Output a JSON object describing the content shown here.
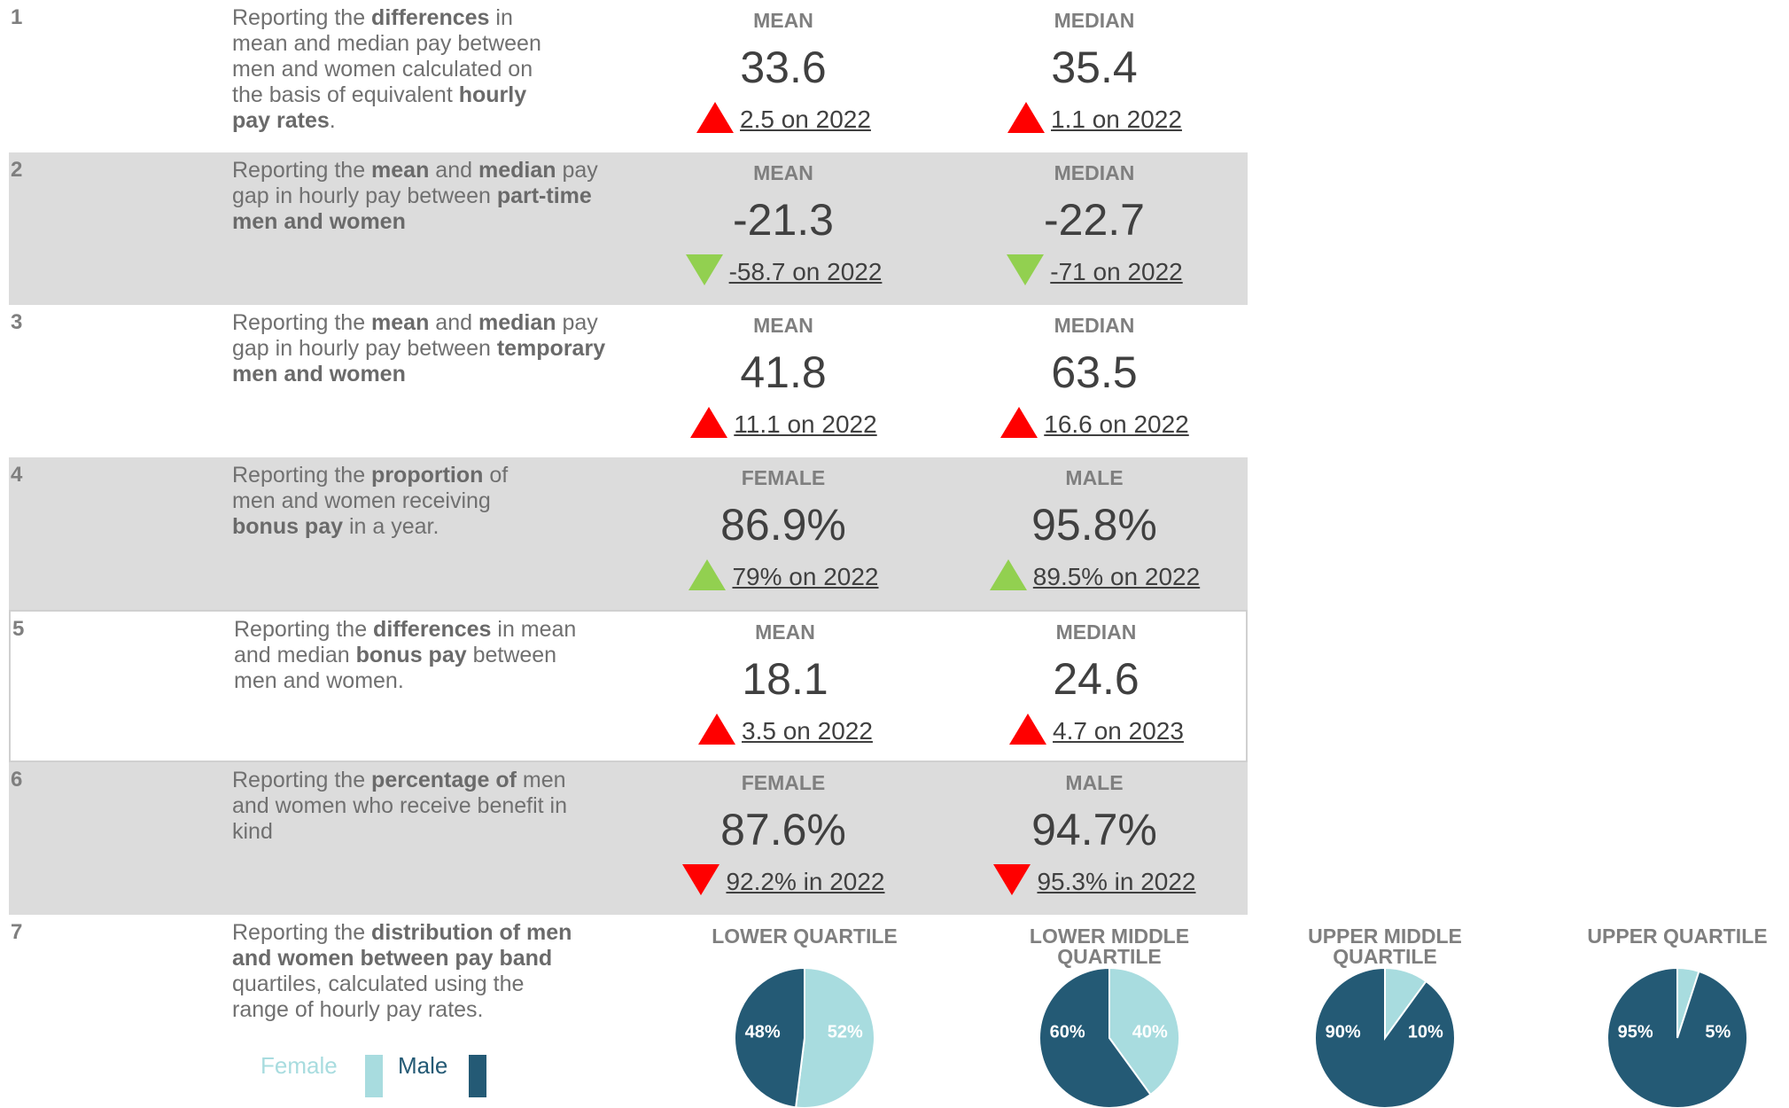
{
  "rows": [
    {
      "number": "1",
      "description": [
        {
          "text": "Reporting the "
        },
        {
          "text": "differences",
          "bold": true
        },
        {
          "text": " in mean and median pay between men and women calculated on the basis of equivalent "
        },
        {
          "text": "hourly pay rates",
          "bold": true
        },
        {
          "text": "."
        }
      ],
      "metrics": [
        {
          "label": "MEAN",
          "value": "33.6",
          "change": "2.5 on 2022",
          "trend": "up",
          "color": "#ff0000"
        },
        {
          "label": "MEDIAN",
          "value": "35.4",
          "change": "1.1 on 2022",
          "trend": "up",
          "color": "#ff0000"
        }
      ]
    },
    {
      "number": "2",
      "description": [
        {
          "text": "Reporting  the "
        },
        {
          "text": "mean",
          "bold": true
        },
        {
          "text": " and "
        },
        {
          "text": "median",
          "bold": true
        },
        {
          "text": " pay gap in hourly pay between "
        },
        {
          "text": "part-time men and women",
          "bold": true
        }
      ],
      "metrics": [
        {
          "label": "MEAN",
          "value": "-21.3",
          "change": "-58.7 on 2022",
          "trend": "down",
          "color": "#92d050"
        },
        {
          "label": "MEDIAN",
          "value": "-22.7",
          "change": "-71 on 2022",
          "trend": "down",
          "color": "#92d050"
        }
      ]
    },
    {
      "number": "3",
      "description": [
        {
          "text": "Reporting  the "
        },
        {
          "text": "mean",
          "bold": true
        },
        {
          "text": " and "
        },
        {
          "text": "median",
          "bold": true
        },
        {
          "text": " pay gap in hourly pay between "
        },
        {
          "text": "temporary men and women",
          "bold": true
        }
      ],
      "metrics": [
        {
          "label": "MEAN",
          "value": "41.8",
          "change": "11.1 on 2022",
          "trend": "up",
          "color": "#ff0000"
        },
        {
          "label": "MEDIAN",
          "value": "63.5",
          "change": "16.6 on 2022",
          "trend": "up",
          "color": "#ff0000"
        }
      ]
    },
    {
      "number": "4",
      "description": [
        {
          "text": "Reporting the "
        },
        {
          "text": "proportion",
          "bold": true
        },
        {
          "text": " of men and women receiving "
        },
        {
          "text": "bonus pay",
          "bold": true
        },
        {
          "text": " in a year."
        }
      ],
      "metrics": [
        {
          "label": "FEMALE",
          "value": "86.9%",
          "change": "79% on 2022",
          "trend": "up",
          "color": "#92d050"
        },
        {
          "label": "MALE",
          "value": "95.8%",
          "change": "89.5% on 2022",
          "trend": "up",
          "color": "#92d050"
        }
      ]
    },
    {
      "number": "5",
      "description": [
        {
          "text": "Reporting  the "
        },
        {
          "text": "differences",
          "bold": true
        },
        {
          "text": " in mean and median "
        },
        {
          "text": "bonus pay",
          "bold": true
        },
        {
          "text": " between men and women."
        }
      ],
      "metrics": [
        {
          "label": "MEAN",
          "value": "18.1",
          "change": "3.5 on 2022",
          "trend": "up",
          "color": "#ff0000"
        },
        {
          "label": "MEDIAN",
          "value": "24.6",
          "change": "4.7 on 2023",
          "trend": "up",
          "color": "#ff0000"
        }
      ]
    },
    {
      "number": "6",
      "description": [
        {
          "text": "Reporting  the "
        },
        {
          "text": "percentage of",
          "bold": true
        },
        {
          "text": "  men and women who receive benefit in kind"
        }
      ],
      "metrics": [
        {
          "label": "FEMALE",
          "value": "87.6%",
          "change": "92.2% in 2022",
          "trend": "down",
          "color": "#ff0000"
        },
        {
          "label": "MALE",
          "value": "94.7%",
          "change": "95.3% in 2022",
          "trend": "down",
          "color": "#ff0000"
        }
      ]
    }
  ],
  "quartiles": {
    "number": "7",
    "description": [
      {
        "text": "Reporting the "
      },
      {
        "text": "distribution  of men and women between pay band",
        "bold": true
      },
      {
        "text": " quartiles, calculated using the range of hourly pay rates."
      }
    ],
    "legend": [
      {
        "name": "Female",
        "color": "#a8dcdf"
      },
      {
        "name": "Male",
        "color": "#245a75"
      }
    ],
    "charts": [
      {
        "type": "pie",
        "title": "LOWER QUARTILE",
        "values": [
          52,
          48
        ],
        "value_labels": [
          "52%",
          "48%"
        ]
      },
      {
        "type": "pie",
        "title": "LOWER MIDDLE QUARTILE",
        "values": [
          40,
          60
        ],
        "value_labels": [
          "40%",
          "60%"
        ]
      },
      {
        "type": "pie",
        "title": "UPPER MIDDLE QUARTILE",
        "values": [
          10,
          90
        ],
        "value_labels": [
          "10%",
          "90%"
        ]
      },
      {
        "type": "pie",
        "title": "UPPER QUARTILE",
        "values": [
          5,
          95
        ],
        "value_labels": [
          "5%",
          "95%"
        ]
      }
    ]
  }
}
